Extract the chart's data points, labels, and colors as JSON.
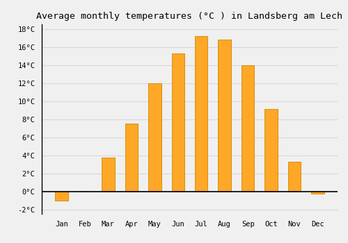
{
  "title": "Average monthly temperatures (°C ) in Landsberg am Lech",
  "months": [
    "Jan",
    "Feb",
    "Mar",
    "Apr",
    "May",
    "Jun",
    "Jul",
    "Aug",
    "Sep",
    "Oct",
    "Nov",
    "Dec"
  ],
  "values": [
    -1.0,
    0.0,
    3.7,
    7.5,
    12.0,
    15.3,
    17.2,
    16.8,
    14.0,
    9.1,
    3.3,
    -0.3
  ],
  "bar_color": "#FFA726",
  "bar_edge_color": "#CC8800",
  "ylim": [
    -2.5,
    18.5
  ],
  "yticks": [
    -2,
    0,
    2,
    4,
    6,
    8,
    10,
    12,
    14,
    16,
    18
  ],
  "background_color": "#f0f0f0",
  "grid_color": "#d8d8d8",
  "title_fontsize": 9.5,
  "bar_width": 0.55
}
